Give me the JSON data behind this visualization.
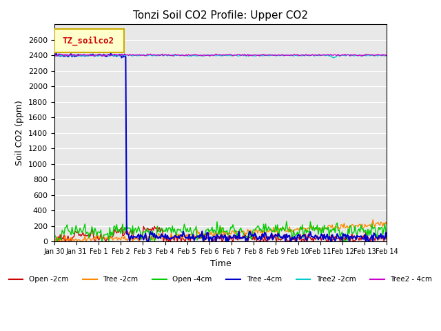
{
  "title": "Tonzi Soil CO2 Profile: Upper CO2",
  "xlabel": "Time",
  "ylabel": "Soil CO2 (ppm)",
  "ylim": [
    0,
    2800
  ],
  "yticks": [
    0,
    200,
    400,
    600,
    800,
    1000,
    1200,
    1400,
    1600,
    1800,
    2000,
    2200,
    2400,
    2600
  ],
  "background_color": "#e8e8e8",
  "legend_box_text": "TZ_soilco2",
  "legend_box_color": "#ffffcc",
  "legend_box_edgecolor": "#ccaa00",
  "series": [
    {
      "label": "Open -2cm",
      "color": "#cc0000"
    },
    {
      "label": "Tree -2cm",
      "color": "#ff8800"
    },
    {
      "label": "Open -4cm",
      "color": "#00cc00"
    },
    {
      "label": "Tree -4cm",
      "color": "#0000cc"
    },
    {
      "label": "Tree2 -2cm",
      "color": "#00cccc"
    },
    {
      "label": "Tree2 - 4cm",
      "color": "#cc00cc"
    }
  ],
  "n_points": 336
}
